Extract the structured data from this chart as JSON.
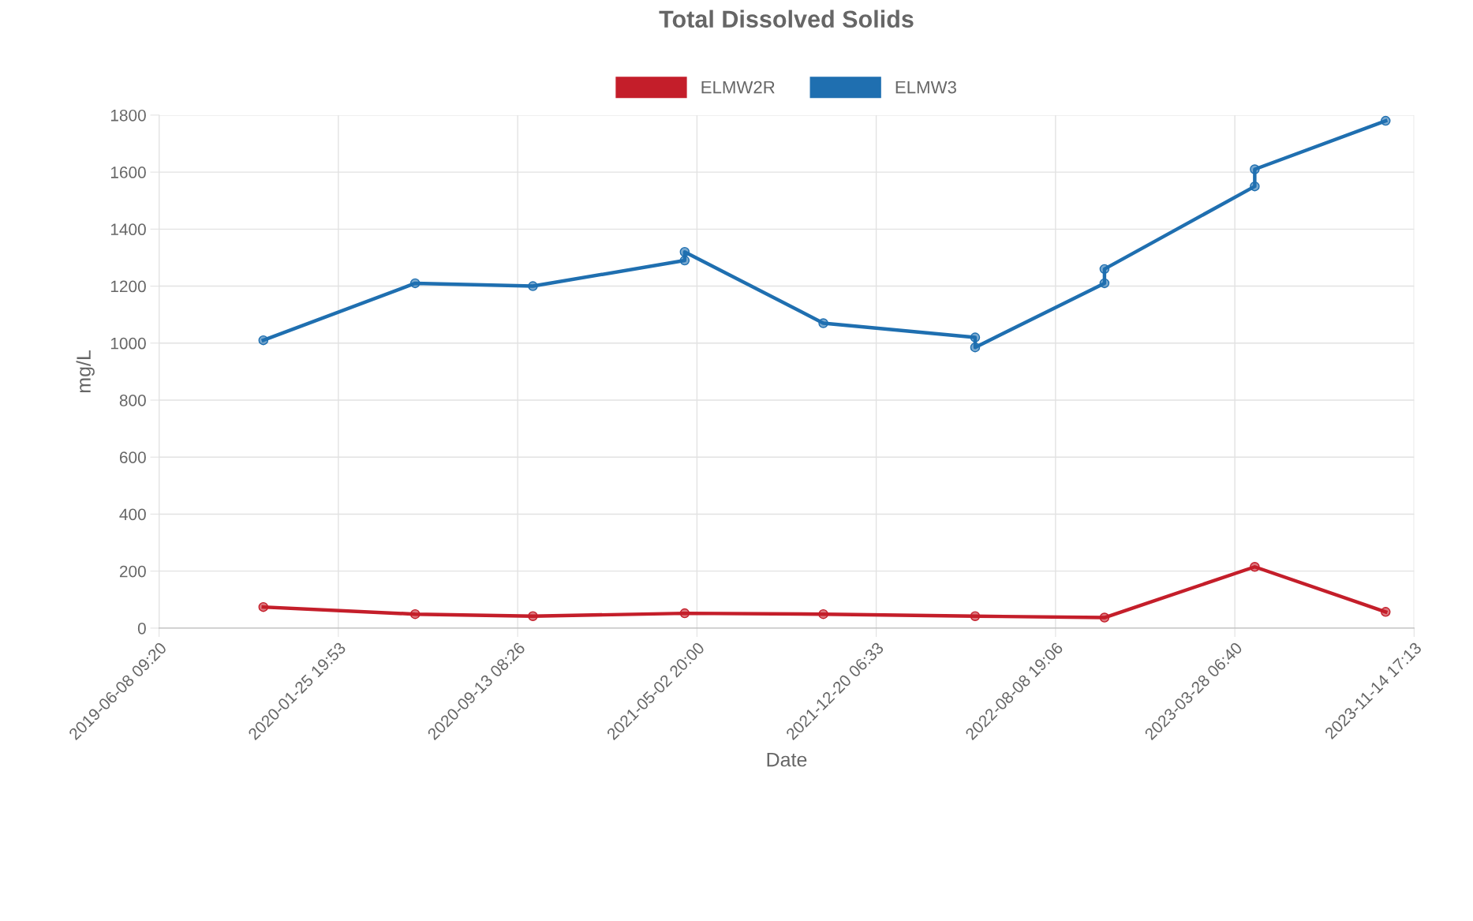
{
  "chart_data": {
    "type": "line",
    "title": "Total Dissolved Solids",
    "xlabel": "Date",
    "ylabel": "mg/L",
    "xlim": [
      "2019-06-08T09:20",
      "2023-11-14T17:13"
    ],
    "xticks": [
      {
        "value": "2019-06-08T09:20",
        "label": "2019-06-08 09:20"
      },
      {
        "value": "2020-01-25T19:53",
        "label": "2020-01-25 19:53"
      },
      {
        "value": "2020-09-13T08:26",
        "label": "2020-09-13 08:26"
      },
      {
        "value": "2021-05-02T20:00",
        "label": "2021-05-02 20:00"
      },
      {
        "value": "2021-12-20T06:33",
        "label": "2021-12-20 06:33"
      },
      {
        "value": "2022-08-08T19:06",
        "label": "2022-08-08 19:06"
      },
      {
        "value": "2023-03-28T06:40",
        "label": "2023-03-28 06:40"
      },
      {
        "value": "2023-11-14T17:13",
        "label": "2023-11-14 17:13"
      }
    ],
    "ylim": [
      0,
      1800
    ],
    "yticks": [
      0,
      200,
      400,
      600,
      800,
      1000,
      1200,
      1400,
      1600,
      1800
    ],
    "grid": true,
    "legend": "top",
    "marker": "circle",
    "line_style": "solid",
    "series": [
      {
        "name": "ELMW2R",
        "color": "#c41e2a",
        "x": [
          "2019-10-21",
          "2020-05-04",
          "2020-10-03",
          "2021-04-17",
          "2021-10-13",
          "2022-04-27",
          "2022-10-11",
          "2023-04-23",
          "2023-10-09"
        ],
        "values": [
          74,
          49,
          42,
          52,
          49,
          42,
          37,
          215,
          57
        ]
      },
      {
        "name": "ELMW3",
        "color": "#1f6fb0",
        "x": [
          "2019-10-21",
          "2020-05-04",
          "2020-10-03",
          "2021-04-17",
          "2021-04-17",
          "2021-10-13",
          "2022-04-27",
          "2022-04-27",
          "2022-10-11",
          "2022-10-11",
          "2023-04-23",
          "2023-04-23",
          "2023-10-09"
        ],
        "values": [
          1010,
          1210,
          1200,
          1290,
          1320,
          1070,
          1020,
          985,
          1210,
          1260,
          1550,
          1610,
          1780
        ]
      }
    ]
  }
}
